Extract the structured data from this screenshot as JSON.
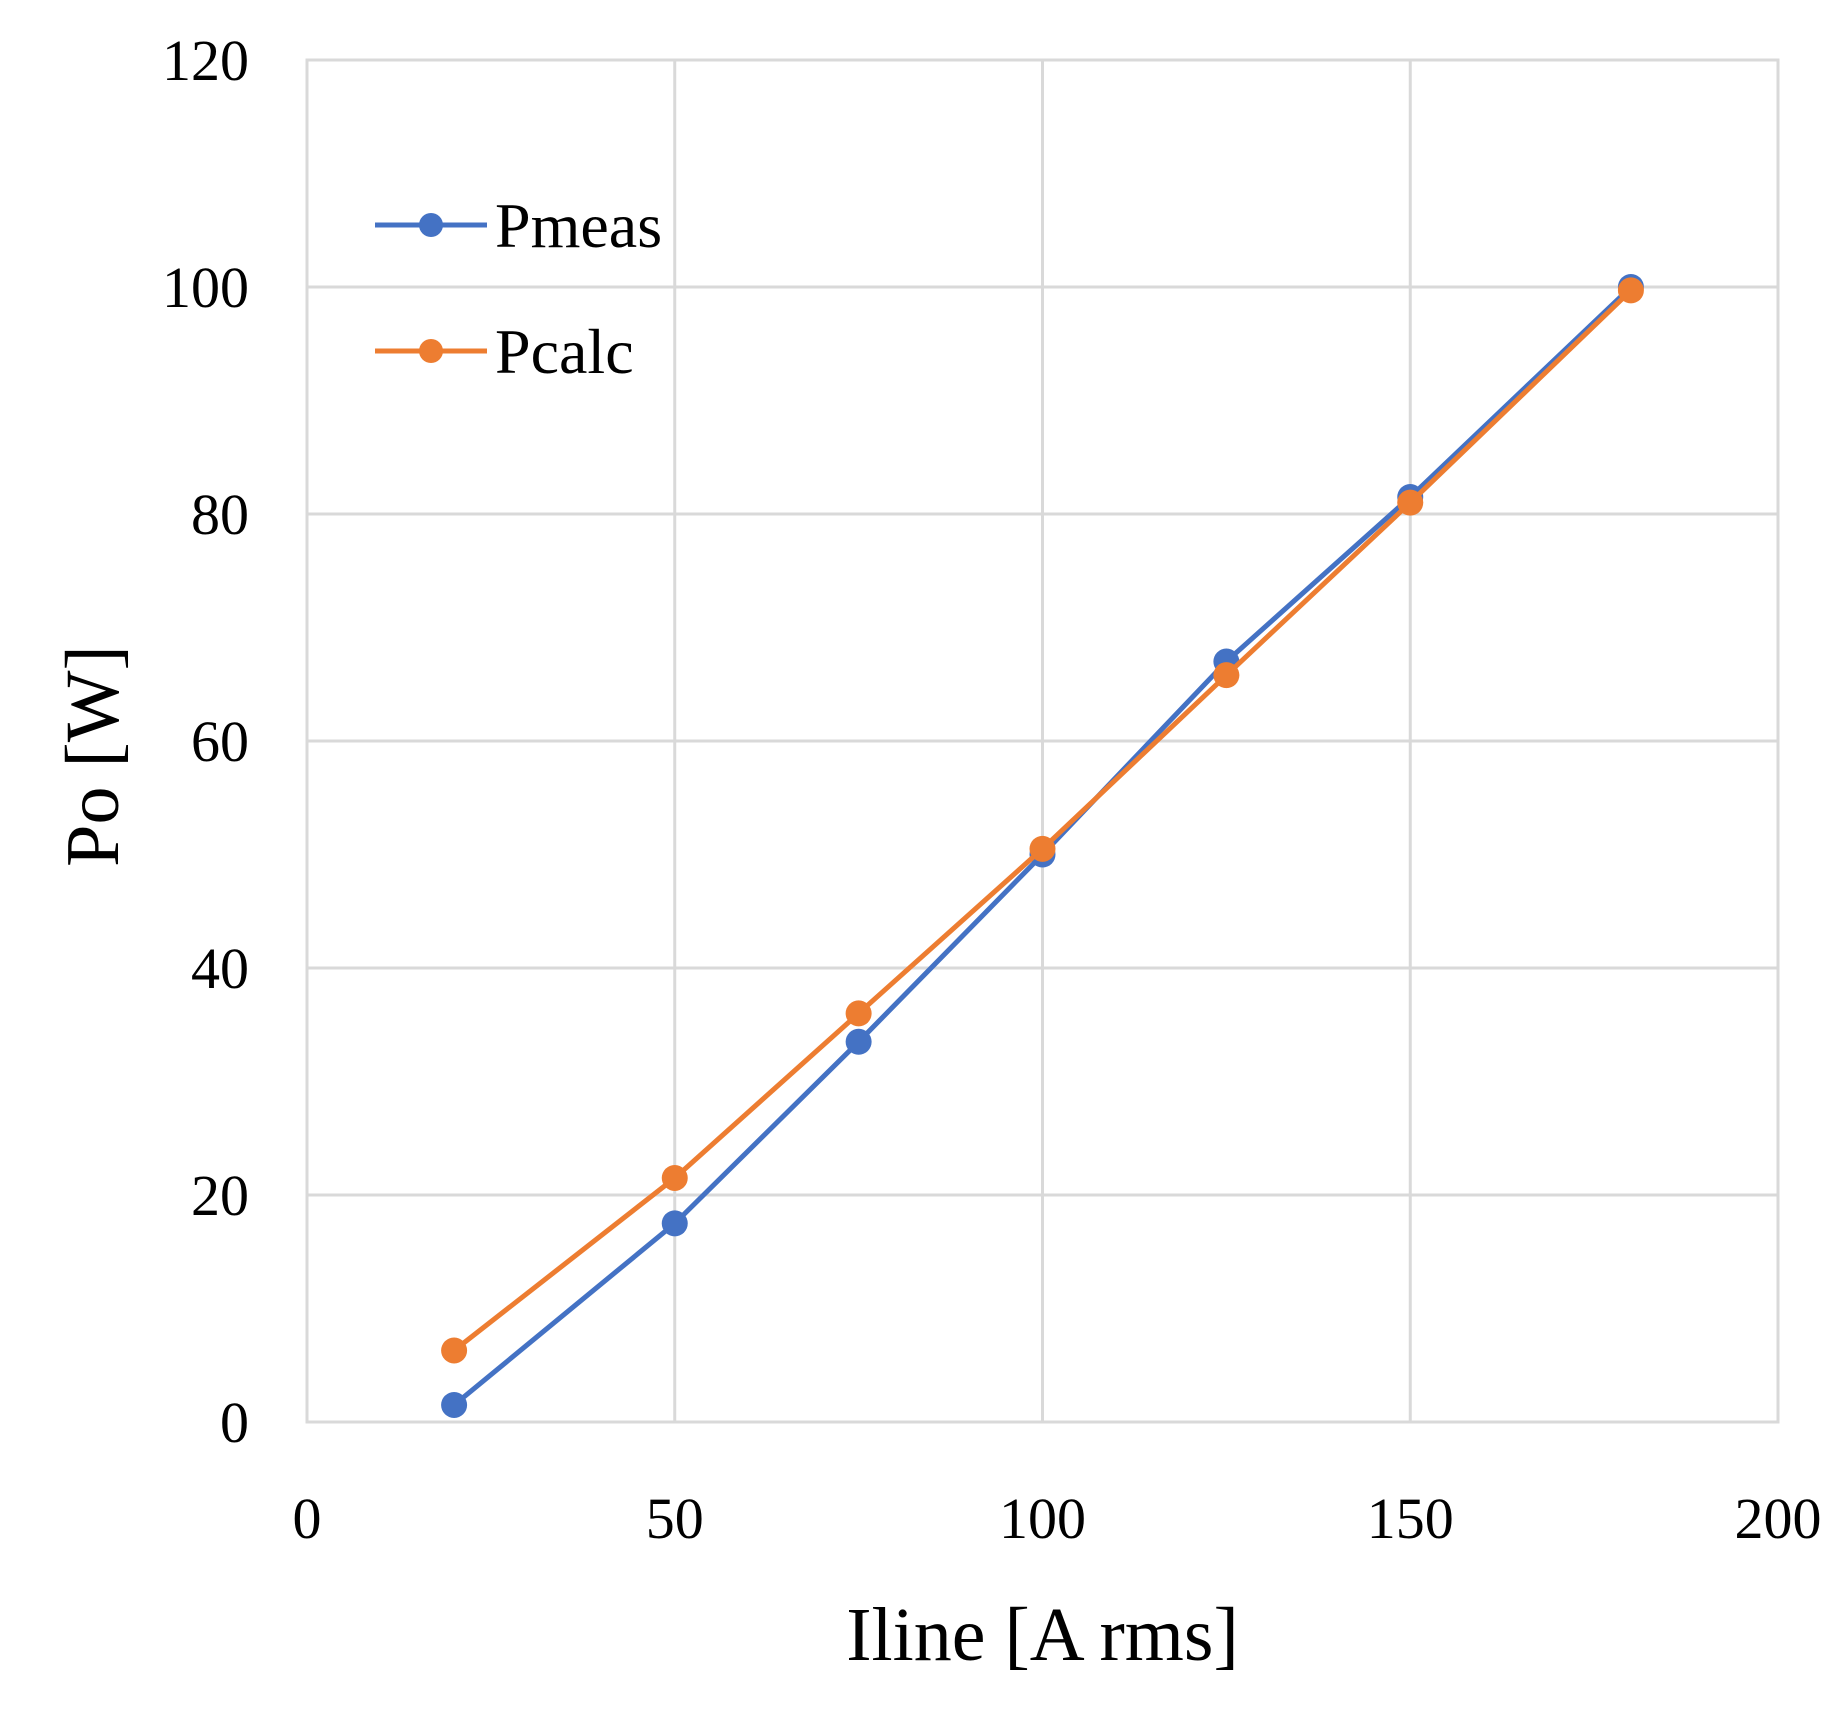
{
  "chart_data": {
    "type": "line",
    "title": "",
    "xlabel": "Iline [A rms]",
    "ylabel": "Po [W]",
    "xlim": [
      0,
      200
    ],
    "ylim": [
      0,
      120
    ],
    "x_ticks": [
      "0",
      "50",
      "100",
      "150",
      "200"
    ],
    "y_ticks": [
      "0",
      "20",
      "40",
      "60",
      "80",
      "100",
      "120"
    ],
    "grid": true,
    "legend_position": "top-left",
    "series": [
      {
        "name": "Pmeas",
        "color": "#4472c4",
        "x": [
          20,
          50,
          75,
          100,
          125,
          150,
          180
        ],
        "y": [
          1.5,
          17.5,
          33.5,
          50,
          67,
          81.5,
          100
        ]
      },
      {
        "name": "Pcalc",
        "color": "#ed7d31",
        "x": [
          20,
          50,
          75,
          100,
          125,
          150,
          180
        ],
        "y": [
          6.3,
          21.5,
          36,
          50.5,
          65.8,
          81,
          99.7
        ]
      }
    ]
  }
}
